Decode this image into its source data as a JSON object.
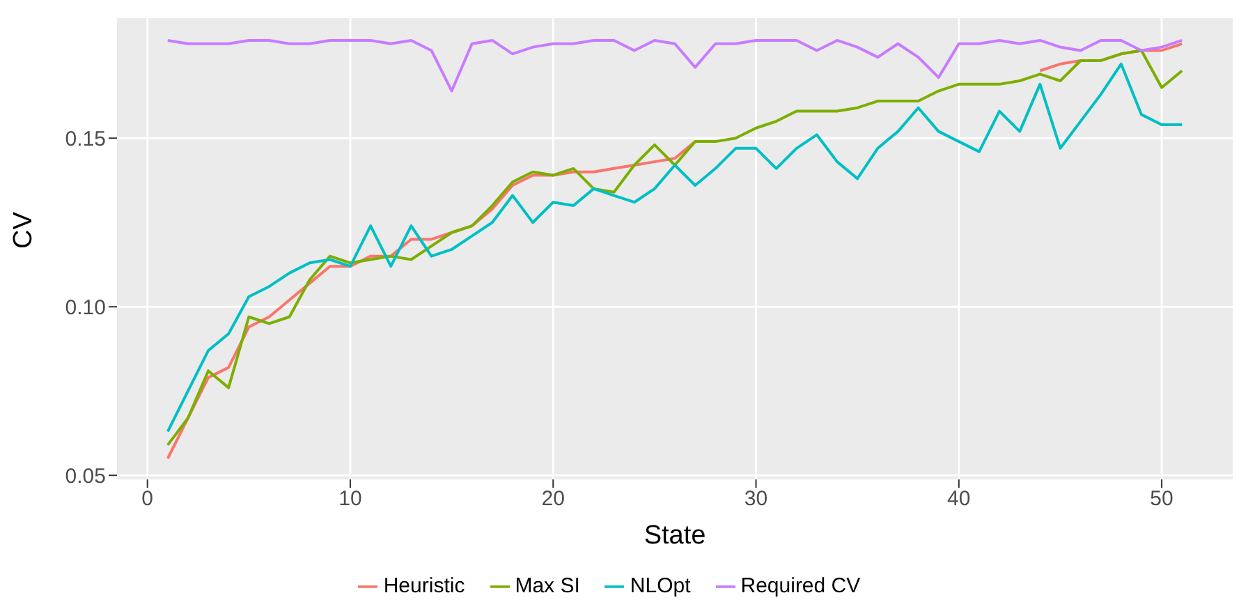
{
  "chart_data": {
    "type": "line",
    "xlabel": "State",
    "ylabel": "CV",
    "x": [
      1,
      2,
      3,
      4,
      5,
      6,
      7,
      8,
      9,
      10,
      11,
      12,
      13,
      14,
      15,
      16,
      17,
      18,
      19,
      20,
      21,
      22,
      23,
      24,
      25,
      26,
      27,
      28,
      29,
      30,
      31,
      32,
      33,
      34,
      35,
      36,
      37,
      38,
      39,
      40,
      41,
      42,
      43,
      44,
      45,
      46,
      47,
      48,
      49,
      50,
      51
    ],
    "xlim": [
      -1.5,
      53.5
    ],
    "xticks": [
      0,
      10,
      20,
      30,
      40,
      50
    ],
    "ylim": [
      0.0488,
      0.1856
    ],
    "yticks": [
      0.05,
      {
        "value": 0.1,
        "label": "0.10"
      },
      0.15
    ],
    "grid": true,
    "legend": "bottom",
    "line_style": "solid",
    "marker": "none",
    "series": [
      {
        "name": "Heuristic",
        "color": "#f8766d",
        "values": [
          0.055,
          0.067,
          0.079,
          0.082,
          0.094,
          0.097,
          0.102,
          0.107,
          0.112,
          0.112,
          0.115,
          0.115,
          0.12,
          0.12,
          0.122,
          0.124,
          0.129,
          0.136,
          0.139,
          0.139,
          0.14,
          0.14,
          0.141,
          0.142,
          0.143,
          0.144,
          0.149,
          null,
          null,
          null,
          null,
          null,
          null,
          null,
          null,
          null,
          null,
          null,
          null,
          null,
          null,
          null,
          null,
          0.17,
          0.172,
          0.173,
          0.173,
          0.175,
          0.176,
          0.176,
          0.178
        ]
      },
      {
        "name": "Max SI",
        "color": "#7cae00",
        "values": [
          0.059,
          0.067,
          0.081,
          0.076,
          0.097,
          0.095,
          0.097,
          0.108,
          0.115,
          0.113,
          0.114,
          0.115,
          0.114,
          0.118,
          0.122,
          0.124,
          0.13,
          0.137,
          0.14,
          0.139,
          0.141,
          0.135,
          0.134,
          0.142,
          0.148,
          0.142,
          0.149,
          0.149,
          0.15,
          0.153,
          0.155,
          0.158,
          0.158,
          0.158,
          0.159,
          0.161,
          0.161,
          0.161,
          0.164,
          0.166,
          0.166,
          0.166,
          0.167,
          0.169,
          0.167,
          0.173,
          0.173,
          0.175,
          0.176,
          0.165,
          0.17
        ]
      },
      {
        "name": "NLOpt",
        "color": "#00bfc4",
        "values": [
          0.063,
          0.075,
          0.087,
          0.092,
          0.103,
          0.106,
          0.11,
          0.113,
          0.114,
          0.112,
          0.124,
          0.112,
          0.124,
          0.115,
          0.117,
          0.121,
          0.125,
          0.133,
          0.125,
          0.131,
          0.13,
          0.135,
          0.133,
          0.131,
          0.135,
          0.142,
          0.136,
          0.141,
          0.147,
          0.147,
          0.141,
          0.147,
          0.151,
          0.143,
          0.138,
          0.147,
          0.152,
          0.159,
          0.152,
          0.149,
          0.146,
          0.158,
          0.152,
          0.166,
          0.147,
          0.155,
          0.163,
          0.172,
          0.157,
          0.154,
          0.154
        ]
      },
      {
        "name": "Required CV",
        "color": "#c77cff",
        "values": [
          0.179,
          0.178,
          0.178,
          0.178,
          0.179,
          0.179,
          0.178,
          0.178,
          0.179,
          0.179,
          0.179,
          0.178,
          0.179,
          0.176,
          0.164,
          0.178,
          0.179,
          0.175,
          0.177,
          0.178,
          0.178,
          0.179,
          0.179,
          0.176,
          0.179,
          0.178,
          0.171,
          0.178,
          0.178,
          0.179,
          0.179,
          0.179,
          0.176,
          0.179,
          0.177,
          0.174,
          0.178,
          0.174,
          0.168,
          0.178,
          0.178,
          0.179,
          0.178,
          0.179,
          0.177,
          0.176,
          0.179,
          0.179,
          0.176,
          0.177,
          0.179
        ]
      }
    ]
  }
}
